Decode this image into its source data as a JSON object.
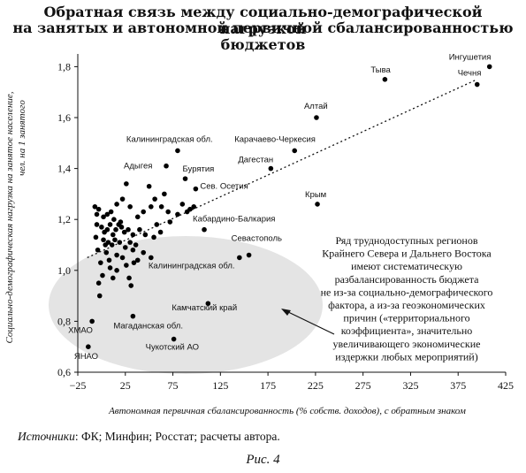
{
  "header": {
    "title_line1": "Обратная связь между социально-демографической нагрузкой",
    "title_line2": "на занятых и автономной первичной сбалансированностью бюджетов"
  },
  "chart_data": {
    "type": "scatter",
    "xlabel": "Автономная первичная сбалансированность (% собств. доходов), с обратным знаком",
    "ylabel_line1": "Социально-демографическая нагрузка на занятое население,",
    "ylabel_line2": "чел. на 1 занятого",
    "xlim": [
      -25,
      425
    ],
    "ylim": [
      0.6,
      1.85
    ],
    "x_ticks": [
      "−25",
      "25",
      "75",
      "125",
      "175",
      "225",
      "275",
      "325",
      "375",
      "425"
    ],
    "x_tick_values": [
      -25,
      25,
      75,
      125,
      175,
      225,
      275,
      325,
      375,
      425
    ],
    "y_ticks": [
      "0,6",
      "0,8",
      "1,0",
      "1,2",
      "1,4",
      "1,6",
      "1,8"
    ],
    "y_tick_values": [
      0.6,
      0.8,
      1.0,
      1.2,
      1.4,
      1.6,
      1.8
    ],
    "trendline": {
      "x": [
        -15,
        395
      ],
      "y": [
        1.05,
        1.75
      ],
      "style": "dotted"
    },
    "labeled_points": [
      {
        "label": "Ингушетия",
        "x": 408,
        "y": 1.8
      },
      {
        "label": "Тыва",
        "x": 298,
        "y": 1.75
      },
      {
        "label": "Чечня",
        "x": 395,
        "y": 1.73
      },
      {
        "label": "Алтай",
        "x": 226,
        "y": 1.6
      },
      {
        "label": "Калининградская обл.",
        "x": 80,
        "y": 1.47
      },
      {
        "label": "Карачаево-Черкесия",
        "x": 203,
        "y": 1.47
      },
      {
        "label": "Адыгея",
        "x": 68,
        "y": 1.41
      },
      {
        "label": "Дагестан",
        "x": 178,
        "y": 1.4
      },
      {
        "label": "Бурятия",
        "x": 88,
        "y": 1.36
      },
      {
        "label": "Сев. Осетия",
        "x": 99,
        "y": 1.32
      },
      {
        "label": "Крым",
        "x": 227,
        "y": 1.26
      },
      {
        "label": "Кабардино-Балкария",
        "x": 108,
        "y": 1.16
      },
      {
        "label": "Севастополь",
        "x": 155,
        "y": 1.06
      },
      {
        "label": "Калининградская обл.",
        "x": 145,
        "y": 1.05
      },
      {
        "label": "Камчатский край",
        "x": 112,
        "y": 0.87
      },
      {
        "label": "Магаданская обл.",
        "x": 33,
        "y": 0.82
      },
      {
        "label": "ХМАО",
        "x": -10,
        "y": 0.8
      },
      {
        "label": "Чукотский АО",
        "x": 76,
        "y": 0.73
      },
      {
        "label": "ЯНАО",
        "x": -14,
        "y": 0.7
      }
    ],
    "points": [
      {
        "x": -7,
        "y": 1.25
      },
      {
        "x": -3,
        "y": 1.24
      },
      {
        "x": -5,
        "y": 1.22
      },
      {
        "x": 2,
        "y": 1.21
      },
      {
        "x": 6,
        "y": 1.22
      },
      {
        "x": 10,
        "y": 1.23
      },
      {
        "x": 16,
        "y": 1.26
      },
      {
        "x": 22,
        "y": 1.28
      },
      {
        "x": 30,
        "y": 1.25
      },
      {
        "x": 38,
        "y": 1.21
      },
      {
        "x": 44,
        "y": 1.23
      },
      {
        "x": 52,
        "y": 1.25
      },
      {
        "x": 56,
        "y": 1.28
      },
      {
        "x": 63,
        "y": 1.25
      },
      {
        "x": 70,
        "y": 1.23
      },
      {
        "x": 80,
        "y": 1.22
      },
      {
        "x": 85,
        "y": 1.26
      },
      {
        "x": 90,
        "y": 1.23
      },
      {
        "x": 93,
        "y": 1.24
      },
      {
        "x": 97,
        "y": 1.25
      },
      {
        "x": 26,
        "y": 1.34
      },
      {
        "x": 50,
        "y": 1.33
      },
      {
        "x": 66,
        "y": 1.3
      },
      {
        "x": -5,
        "y": 1.18
      },
      {
        "x": 0,
        "y": 1.17
      },
      {
        "x": 3,
        "y": 1.15
      },
      {
        "x": 6,
        "y": 1.16
      },
      {
        "x": 9,
        "y": 1.18
      },
      {
        "x": 12,
        "y": 1.14
      },
      {
        "x": 15,
        "y": 1.16
      },
      {
        "x": 18,
        "y": 1.18
      },
      {
        "x": 21,
        "y": 1.17
      },
      {
        "x": 24,
        "y": 1.15
      },
      {
        "x": 28,
        "y": 1.16
      },
      {
        "x": 33,
        "y": 1.14
      },
      {
        "x": 40,
        "y": 1.16
      },
      {
        "x": 46,
        "y": 1.14
      },
      {
        "x": 55,
        "y": 1.13
      },
      {
        "x": 62,
        "y": 1.15
      },
      {
        "x": 2,
        "y": 1.12
      },
      {
        "x": 7,
        "y": 1.11
      },
      {
        "x": 11,
        "y": 1.1
      },
      {
        "x": 14,
        "y": 1.12
      },
      {
        "x": 19,
        "y": 1.11
      },
      {
        "x": 25,
        "y": 1.09
      },
      {
        "x": 30,
        "y": 1.11
      },
      {
        "x": 36,
        "y": 1.1
      },
      {
        "x": -4,
        "y": 1.08
      },
      {
        "x": 5,
        "y": 1.07
      },
      {
        "x": 16,
        "y": 1.06
      },
      {
        "x": 22,
        "y": 1.05
      },
      {
        "x": 33,
        "y": 1.08
      },
      {
        "x": 44,
        "y": 1.07
      },
      {
        "x": 8,
        "y": 1.04
      },
      {
        "x": -1,
        "y": 1.03
      },
      {
        "x": 26,
        "y": 1.02
      },
      {
        "x": 52,
        "y": 1.05
      },
      {
        "x": 20,
        "y": 1.19
      },
      {
        "x": 13,
        "y": 1.2
      },
      {
        "x": -6,
        "y": 1.13
      },
      {
        "x": 4,
        "y": 1.1
      },
      {
        "x": 58,
        "y": 1.18
      },
      {
        "x": 72,
        "y": 1.19
      },
      {
        "x": 29,
        "y": 0.97
      },
      {
        "x": 1,
        "y": 0.98
      },
      {
        "x": 12,
        "y": 0.97
      },
      {
        "x": -3,
        "y": 0.95
      },
      {
        "x": 31,
        "y": 0.94
      },
      {
        "x": -2,
        "y": 0.9
      },
      {
        "x": 16,
        "y": 1.0
      },
      {
        "x": 34,
        "y": 1.03
      },
      {
        "x": 38,
        "y": 1.04
      },
      {
        "x": 9,
        "y": 1.01
      }
    ],
    "annotation": {
      "lines": [
        "Ряд труднодоступных регионов",
        "Крайнего Севера и Дальнего Востока",
        "имеют систематическую",
        "разбалансированность бюджета",
        "не из-за социально-демографического",
        "фактора, а из-за геоэкономических",
        "причин («территориального",
        "коэффициента», значительно",
        "увеличивающего экономические",
        "издержки любых мероприятий)"
      ]
    },
    "ellipse_color": "#e4e4e4",
    "point_color": "#000000"
  },
  "footer": {
    "source_label": "Источники",
    "source_text": ": ФК; Минфин; Росстат; расчеты автора.",
    "caption": "Рис. 4"
  }
}
